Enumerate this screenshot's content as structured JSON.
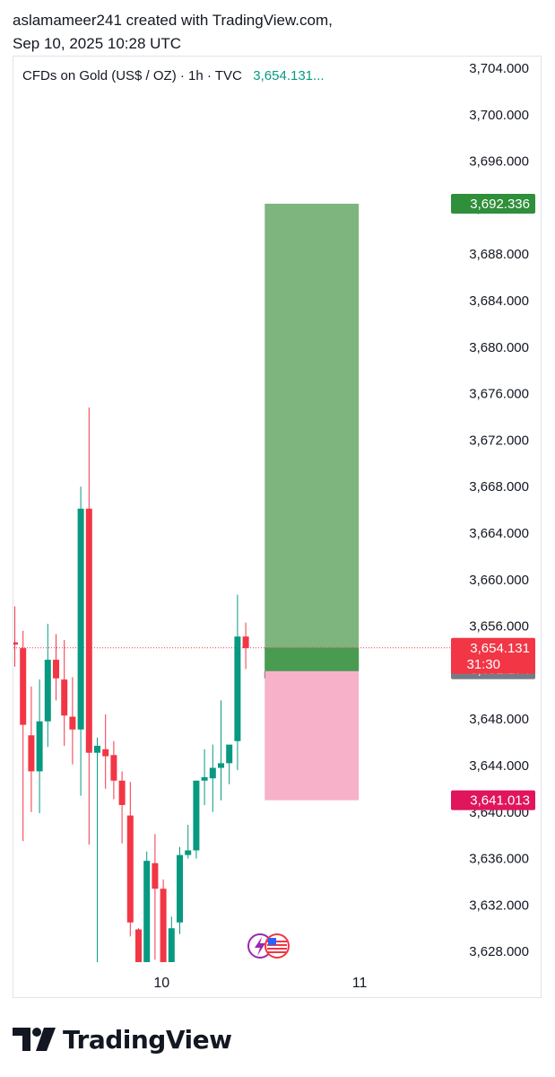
{
  "header": {
    "line1": "aslamameer241 created with TradingView.com,",
    "line2": "Sep 10, 2025 10:28 UTC"
  },
  "legend": {
    "symbol_text": "CFDs on Gold (US$ / OZ) · 1h · TVC",
    "price_text": "3,654.131..."
  },
  "brand": {
    "name": "TradingView"
  },
  "colors": {
    "up": "#089981",
    "down": "#f23645",
    "profit_zone": "#7eb57f",
    "loss_zone": "#f7b2ca",
    "target_label": "#2f8f3a",
    "stop_label": "#e0155c",
    "entry_label": "#787b86"
  },
  "chart_data": {
    "type": "candlestick",
    "title": "CFDs on Gold (US$ / OZ) · 1h · TVC",
    "timeframe": "1h",
    "ylim": [
      3625,
      3707
    ],
    "y_ticks": [
      3628,
      3632,
      3636,
      3640,
      3644,
      3648,
      3652,
      3656,
      3660,
      3664,
      3668,
      3672,
      3676,
      3680,
      3684,
      3688,
      3692,
      3696,
      3700,
      3704
    ],
    "y_tick_labels": [
      "3,628.000",
      "3,632.000",
      "3,636.000",
      "3,640.000",
      "3,644.000",
      "3,648.000",
      "3,652.000",
      "3,656.000",
      "3,660.000",
      "3,664.000",
      "3,668.000",
      "3,672.000",
      "3,676.000",
      "3,680.000",
      "3,684.000",
      "3,688.000",
      "3,692.000",
      "3,696.000",
      "3,700.000",
      "3,704.000"
    ],
    "x_tick_labels": [
      {
        "label": "10",
        "index": 17.8
      },
      {
        "label": "11",
        "index": 41.8
      }
    ],
    "candles": [
      {
        "o": 3654.6,
        "h": 3657.7,
        "l": 3652.5,
        "c": 3654.4
      },
      {
        "o": 3654.1,
        "h": 3655.6,
        "l": 3637.5,
        "c": 3647.5
      },
      {
        "o": 3646.6,
        "h": 3650.8,
        "l": 3640.0,
        "c": 3643.5
      },
      {
        "o": 3643.5,
        "h": 3651.4,
        "l": 3639.9,
        "c": 3647.8
      },
      {
        "o": 3647.8,
        "h": 3656.2,
        "l": 3645.6,
        "c": 3653.1
      },
      {
        "o": 3653.1,
        "h": 3655.3,
        "l": 3649.6,
        "c": 3651.5
      },
      {
        "o": 3651.4,
        "h": 3654.8,
        "l": 3645.7,
        "c": 3648.3
      },
      {
        "o": 3648.2,
        "h": 3651.6,
        "l": 3644.1,
        "c": 3647.1
      },
      {
        "o": 3647.1,
        "h": 3668.0,
        "l": 3641.4,
        "c": 3666.1
      },
      {
        "o": 3666.1,
        "h": 3674.8,
        "l": 3637.2,
        "c": 3645.1
      },
      {
        "o": 3645.1,
        "h": 3646.4,
        "l": 3626.2,
        "c": 3645.7
      },
      {
        "o": 3645.4,
        "h": 3648.4,
        "l": 3642.0,
        "c": 3644.8
      },
      {
        "o": 3644.9,
        "h": 3646.1,
        "l": 3641.1,
        "c": 3642.7
      },
      {
        "o": 3642.7,
        "h": 3643.5,
        "l": 3637.3,
        "c": 3640.6
      },
      {
        "o": 3639.7,
        "h": 3642.6,
        "l": 3629.3,
        "c": 3630.5
      },
      {
        "o": 3629.9,
        "h": 3630.0,
        "l": 3625.3,
        "c": 3626.7
      },
      {
        "o": 3626.7,
        "h": 3636.6,
        "l": 3625.3,
        "c": 3635.8
      },
      {
        "o": 3635.6,
        "h": 3638.1,
        "l": 3627.3,
        "c": 3633.4
      },
      {
        "o": 3633.4,
        "h": 3634.2,
        "l": 3625.9,
        "c": 3626.4
      },
      {
        "o": 3626.5,
        "h": 3631.0,
        "l": 3625.2,
        "c": 3630.0
      },
      {
        "o": 3630.5,
        "h": 3637.0,
        "l": 3629.5,
        "c": 3636.3
      },
      {
        "o": 3636.3,
        "h": 3638.9,
        "l": 3636.0,
        "c": 3636.7
      },
      {
        "o": 3636.7,
        "h": 3642.7,
        "l": 3636.0,
        "c": 3642.7
      },
      {
        "o": 3642.7,
        "h": 3645.4,
        "l": 3640.6,
        "c": 3643.0
      },
      {
        "o": 3642.9,
        "h": 3645.8,
        "l": 3640.0,
        "c": 3643.8
      },
      {
        "o": 3643.8,
        "h": 3649.6,
        "l": 3641.0,
        "c": 3644.2
      },
      {
        "o": 3644.2,
        "h": 3645.7,
        "l": 3642.4,
        "c": 3645.8
      },
      {
        "o": 3646.1,
        "h": 3658.7,
        "l": 3643.6,
        "c": 3655.1
      },
      {
        "o": 3655.1,
        "h": 3656.3,
        "l": 3652.3,
        "c": 3654.1
      }
    ],
    "current_price": {
      "value": 3654.131,
      "label": "3,654.131",
      "countdown": "31:30"
    },
    "position": {
      "type": "long",
      "entry": 3652.274,
      "entry_label": "3,652.274",
      "target": 3692.336,
      "target_label": "3,692.336",
      "stop": 3641.013,
      "stop_label": "3,641.013",
      "start_index": 30.3,
      "end_index": 41.7
    },
    "grid": false
  }
}
